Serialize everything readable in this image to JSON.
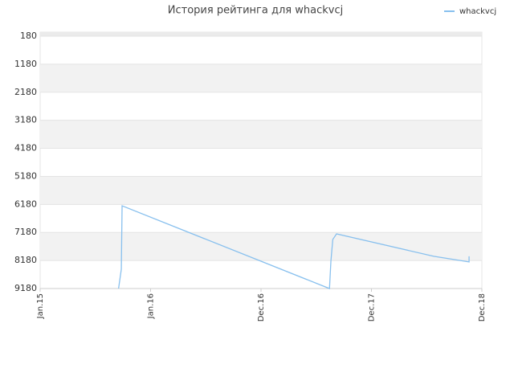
{
  "chart_data": {
    "type": "line",
    "title": "История рейтинга для whackvcj",
    "x_is_tick_index": true,
    "xlim": [
      0,
      4
    ],
    "xticks": [
      {
        "value": 0,
        "label": "Jan.15"
      },
      {
        "value": 1,
        "label": "Jan.16"
      },
      {
        "value": 2,
        "label": "Dec.16"
      },
      {
        "value": 3,
        "label": "Dec.17"
      },
      {
        "value": 4,
        "label": "Dec.18"
      }
    ],
    "ylim": [
      9180,
      180
    ],
    "yticks": [
      180,
      1180,
      2180,
      3180,
      4180,
      5180,
      6180,
      7180,
      8180,
      9180
    ],
    "striped_grid": true,
    "legend": "top-right",
    "x": [
      0.71,
      0.735,
      0.742,
      2.62,
      2.633,
      2.65,
      2.684,
      3.564,
      3.884,
      3.884
    ],
    "series": [
      {
        "name": "whackvcj",
        "color": "#88c0ee",
        "values": [
          9180,
          8490,
          6230,
          9180,
          8200,
          7430,
          7230,
          8030,
          8230,
          8030
        ]
      }
    ]
  }
}
